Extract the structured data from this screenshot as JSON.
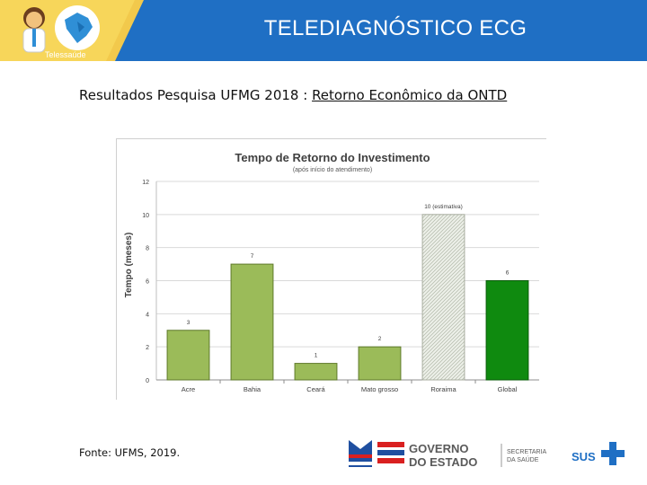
{
  "header": {
    "title": "TELEDIAGNÓSTICO ECG",
    "logo_text": "Telessaúde"
  },
  "slide": {
    "subtitle_prefix": "Resultados Pesquisa UFMG 2018 : ",
    "subtitle_link": "Retorno Econômico da ONTD",
    "source": "Fonte: UFMS, 2019."
  },
  "footer": {
    "gov_line1": "GOVERNO",
    "gov_line2": "DO ESTADO",
    "sec_line1": "SECRETARIA",
    "sec_line2": "DA SAÚDE",
    "sus": "SUS"
  },
  "chart_data": {
    "type": "bar",
    "title": "Tempo de Retorno do Investimento",
    "subtitle": "(após início do atendimento)",
    "xlabel": "",
    "ylabel": "Tempo (meses)",
    "ylim": [
      0,
      12
    ],
    "yticks": [
      0,
      2,
      4,
      6,
      8,
      10,
      12
    ],
    "categories": [
      "Acre",
      "Bahia",
      "Ceará",
      "Mato grosso",
      "Roraima",
      "Global"
    ],
    "values": [
      3,
      7,
      1,
      2,
      10,
      6
    ],
    "value_labels": [
      "3",
      "7",
      "1",
      "2",
      "10 (estimativa)",
      "6"
    ],
    "styles": [
      "normal",
      "normal",
      "normal",
      "normal",
      "estimate",
      "global"
    ],
    "colors": {
      "normal": "#9bbb59",
      "normal_stroke": "#5f7a2b",
      "estimate": "#e6ebe0",
      "global": "#0f8a0f",
      "global_stroke": "#0a5c0a"
    },
    "grid": true
  }
}
